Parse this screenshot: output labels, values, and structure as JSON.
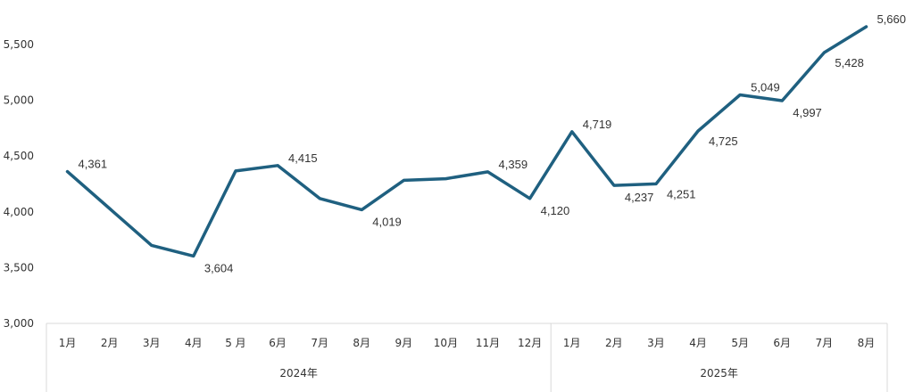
{
  "chart_data": {
    "type": "line",
    "title": "",
    "xlabel": "",
    "ylabel": "",
    "ylim": [
      3000,
      5500
    ],
    "y_ticks": [
      "3,000",
      "3,500",
      "4,000",
      "4,500",
      "5,000",
      "5,500"
    ],
    "y_tick_values": [
      3000,
      3500,
      4000,
      4500,
      5000,
      5500
    ],
    "groups": [
      {
        "label": "2024年",
        "categories": [
          "1月",
          "2月",
          "3月",
          "4月",
          "5 月",
          "6月",
          "7月",
          "8月",
          "9月",
          "10月",
          "11月",
          "12月"
        ]
      },
      {
        "label": "2025年",
        "categories": [
          "1月",
          "2月",
          "3月",
          "4月",
          "5月",
          "6月",
          "7月",
          "8月"
        ]
      }
    ],
    "series": [
      {
        "values": [
          4361,
          4030,
          3700,
          3604,
          4367,
          4415,
          4120,
          4019,
          4283,
          4297,
          4359,
          4120,
          4719,
          4237,
          4251,
          4725,
          5049,
          4997,
          5428,
          5660
        ],
        "data_labels": [
          "4,361",
          "",
          "",
          "3,604",
          "",
          "4,415",
          "",
          "4,019",
          "",
          "",
          "4,359",
          "4,120",
          "4,719",
          "4,237",
          "4,251",
          "4,725",
          "5,049",
          "4,997",
          "5,428",
          "5,660"
        ]
      }
    ],
    "grid": false,
    "legend": "none",
    "line_color": "#1f6080",
    "axis_line_color": "#d9d9d9"
  }
}
